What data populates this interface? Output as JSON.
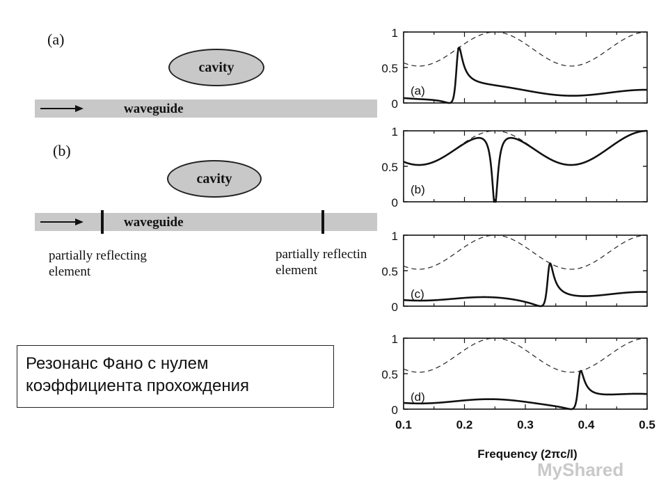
{
  "schematic": {
    "panel_a": {
      "label": "(a)",
      "cavity": "cavity",
      "waveguide": "waveguide"
    },
    "panel_b": {
      "label": "(b)",
      "cavity": "cavity",
      "waveguide": "waveguide",
      "left_element": "partially reflecting\nelement",
      "right_element": "partially reflectin\nelement"
    }
  },
  "note": "Резонанс Фано с нулем\nкоэффициента прохождения",
  "plots": {
    "xlabel": "Frequency (2πc/l)",
    "x_ticks": [
      "0.1",
      "0.2",
      "0.3",
      "0.4",
      "0.5"
    ],
    "y_ticks": [
      "0",
      "0.5",
      "1"
    ],
    "xlim": [
      0.1,
      0.5
    ],
    "ylim": [
      0,
      1
    ],
    "panels": [
      {
        "label": "(a)",
        "resonance": 0.175,
        "asym": -1
      },
      {
        "label": "(b)",
        "resonance": 0.25,
        "asym": 0
      },
      {
        "label": "(c)",
        "resonance": 0.325,
        "asym": -1
      },
      {
        "label": "(d)",
        "resonance": 0.375,
        "asym": -1
      }
    ]
  },
  "watermark": "MyShared"
}
